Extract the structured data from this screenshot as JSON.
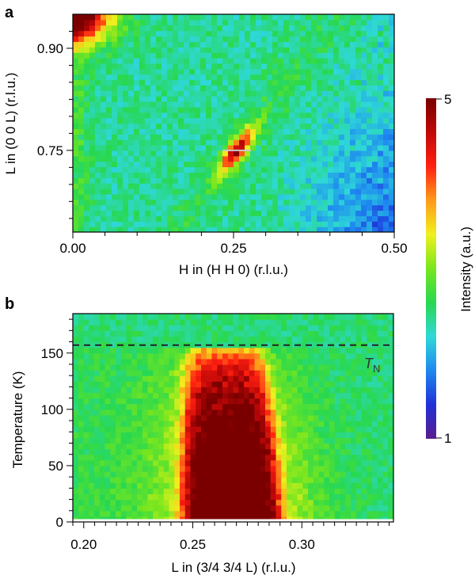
{
  "chart_data": [
    {
      "panel": "a",
      "type": "heatmap",
      "xlabel": "H in (H H 0) (r.l.u.)",
      "ylabel": "L in (0 0 L) (r.l.u.)",
      "xlim": [
        0.0,
        0.5
      ],
      "ylim": [
        0.63,
        0.95
      ],
      "x_ticks": [
        "0.00",
        "0.25",
        "0.50"
      ],
      "x_tick_values": [
        0.0,
        0.25,
        0.5
      ],
      "y_ticks": [
        "0.75",
        "0.90"
      ],
      "y_tick_values": [
        0.75,
        0.9
      ],
      "features": [
        {
          "label": "magnetic peak",
          "h": 0.255,
          "l": 0.75,
          "intensity": 4.6
        },
        {
          "label": "nuclear Bragg tail",
          "h": 0.0,
          "l": 0.95,
          "intensity": 5.0
        }
      ],
      "background_intensity": 2.4
    },
    {
      "panel": "b",
      "type": "heatmap",
      "xlabel": "L in (3/4 3/4 L) (r.l.u.)",
      "ylabel": "Temperature (K)",
      "xlim": [
        0.195,
        0.342
      ],
      "ylim": [
        0,
        185
      ],
      "x_ticks": [
        "0.20",
        "0.25",
        "0.30"
      ],
      "x_tick_values": [
        0.2,
        0.25,
        0.3
      ],
      "y_ticks": [
        "0",
        "50",
        "100",
        "150"
      ],
      "y_tick_values": [
        0,
        50,
        100,
        150
      ],
      "peak_center_L": 0.268,
      "peak_halfwidth_L": 0.022,
      "transition": {
        "label": "T",
        "subscript": "N",
        "value": 157
      },
      "background_intensity": 2.5
    }
  ],
  "colorbar": {
    "label": "Intensity (a.u.)",
    "min_label": "1",
    "max_label": "5",
    "min": 1,
    "max": 5,
    "colors": [
      "#5a1d8e",
      "#2030d8",
      "#1e88f0",
      "#2ed8d8",
      "#28d850",
      "#78e61e",
      "#f0f01e",
      "#ff9a1a",
      "#ff2010",
      "#c00808",
      "#7a0000"
    ]
  }
}
